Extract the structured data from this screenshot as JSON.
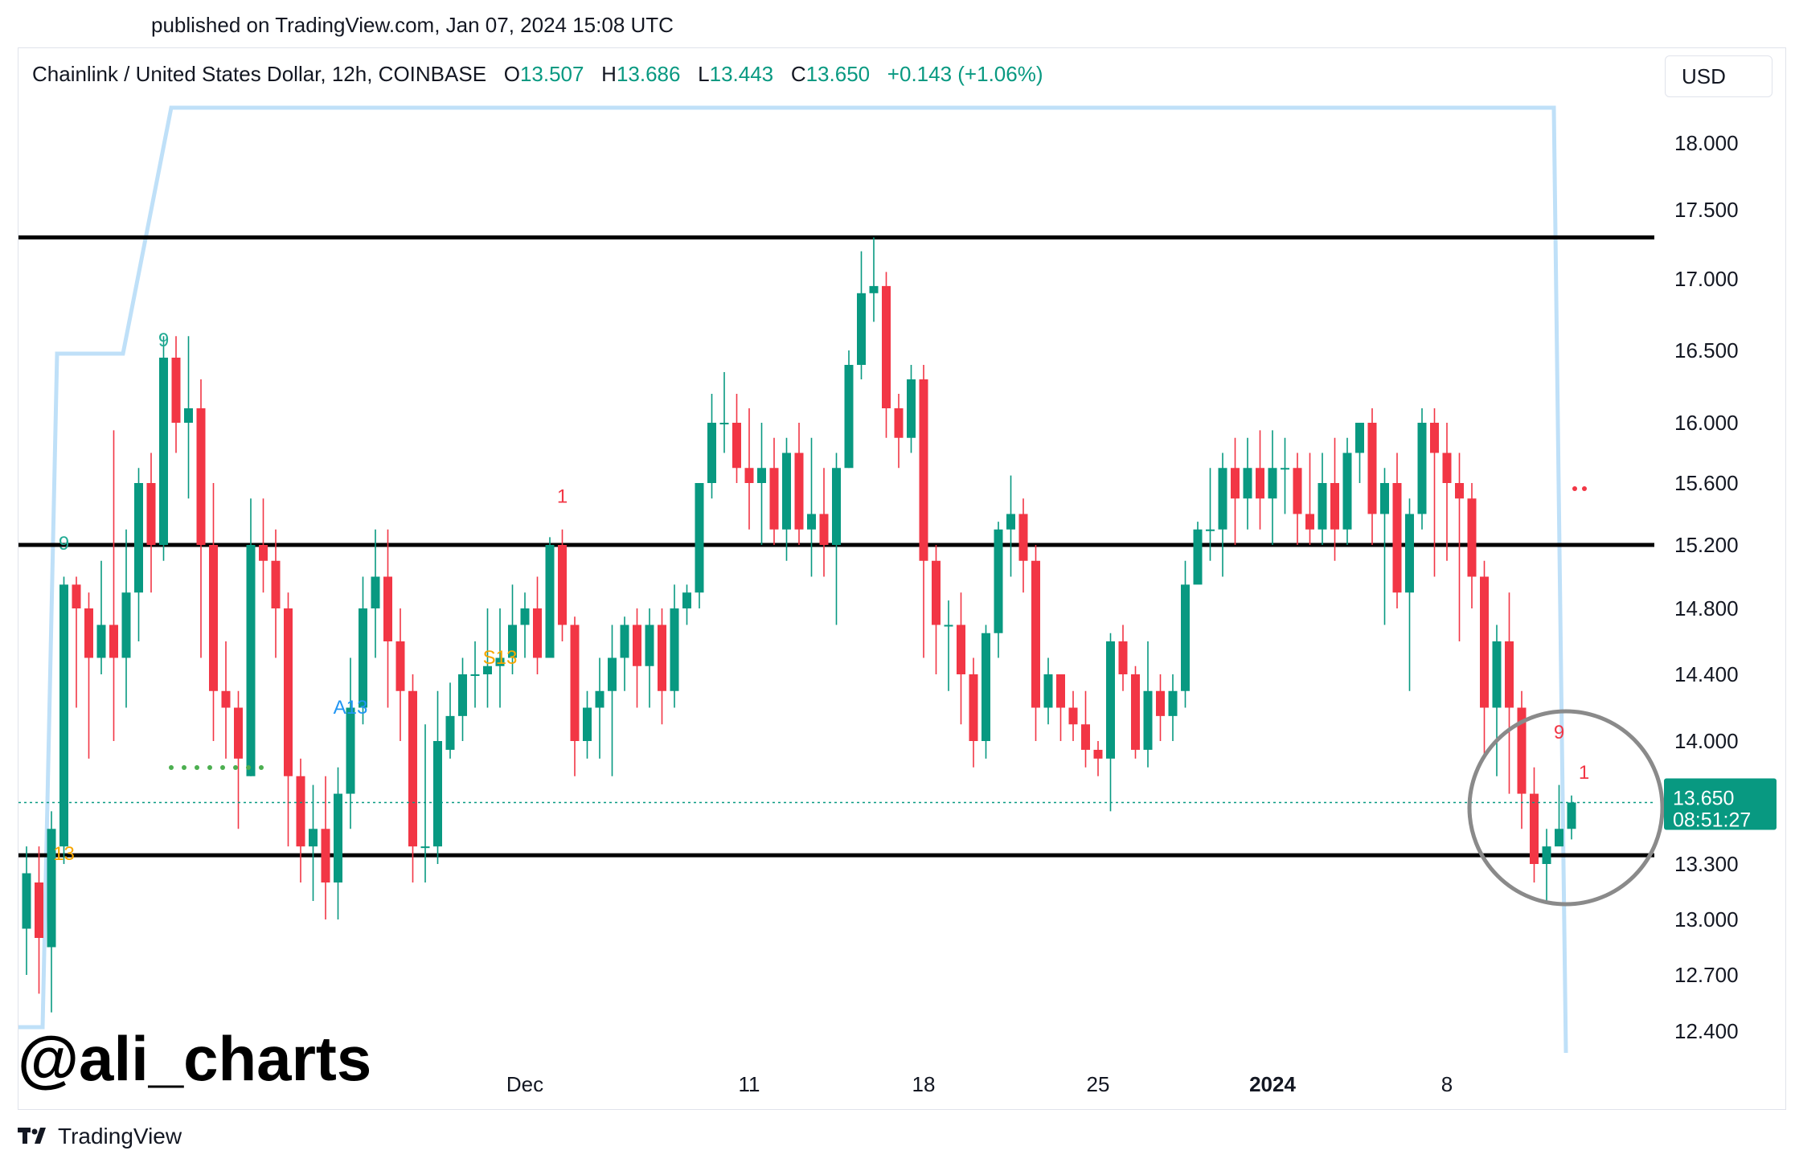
{
  "published_text": "published on TradingView.com, Jan 07, 2024 15:08 UTC",
  "header": {
    "symbol": "Chainlink / United States Dollar, 12h, COINBASE",
    "o_label": "O",
    "o_value": "13.507",
    "h_label": "H",
    "h_value": "13.686",
    "l_label": "L",
    "l_value": "13.443",
    "c_label": "C",
    "c_value": "13.650",
    "change": "+0.143 (+1.06%)",
    "currency": "USD"
  },
  "watermark": "@ali_charts",
  "brand": "TradingView",
  "colors": {
    "up": "#089981",
    "down": "#f23645",
    "band": "#f6f7f9",
    "trail": "#bfe0f8",
    "hline": "#000000"
  },
  "chart_data": {
    "type": "candlestick",
    "timeframe": "12h",
    "y_axis": {
      "ticks": [
        "18.000",
        "17.500",
        "17.000",
        "16.500",
        "16.000",
        "15.600",
        "15.200",
        "14.800",
        "14.400",
        "14.000",
        "13.300",
        "13.000",
        "12.700",
        "12.400"
      ]
    },
    "x_axis": {
      "ticks": [
        {
          "label": "Dec",
          "bar": 40,
          "bold": false
        },
        {
          "label": "11",
          "bar": 58,
          "bold": false
        },
        {
          "label": "18",
          "bar": 72,
          "bold": false
        },
        {
          "label": "25",
          "bar": 86,
          "bold": false
        },
        {
          "label": "2024",
          "bar": 100,
          "bold": true
        },
        {
          "label": "8",
          "bar": 114,
          "bold": false
        }
      ]
    },
    "current_price": {
      "value": 13.65,
      "label": "13.650",
      "countdown": "08:51:27"
    },
    "horizontal_lines": [
      17.3,
      15.2,
      13.35
    ],
    "range_band": [
      13.35,
      17.3
    ],
    "candles": [
      [
        12.95,
        13.25,
        13.4,
        12.7
      ],
      [
        13.2,
        12.9,
        13.4,
        12.6
      ],
      [
        12.85,
        13.5,
        13.6,
        12.5
      ],
      [
        13.4,
        14.95,
        15.0,
        13.3
      ],
      [
        14.95,
        14.8,
        15.0,
        14.2
      ],
      [
        14.8,
        14.5,
        14.9,
        13.9
      ],
      [
        14.5,
        14.7,
        15.1,
        14.4
      ],
      [
        14.7,
        14.5,
        15.95,
        14.0
      ],
      [
        14.5,
        14.9,
        15.3,
        14.2
      ],
      [
        14.9,
        15.6,
        15.7,
        14.6
      ],
      [
        15.6,
        15.2,
        15.8,
        14.9
      ],
      [
        15.2,
        16.45,
        16.6,
        15.1
      ],
      [
        16.45,
        16.0,
        16.6,
        15.8
      ],
      [
        16.0,
        16.1,
        16.6,
        15.5
      ],
      [
        16.1,
        15.2,
        16.3,
        14.5
      ],
      [
        15.2,
        14.3,
        15.6,
        14.0
      ],
      [
        14.3,
        14.2,
        14.6,
        13.9
      ],
      [
        14.2,
        13.9,
        14.3,
        13.5
      ],
      [
        13.8,
        15.2,
        15.5,
        13.8
      ],
      [
        15.2,
        15.1,
        15.5,
        14.9
      ],
      [
        15.1,
        14.8,
        15.3,
        14.5
      ],
      [
        14.8,
        13.8,
        14.9,
        13.4
      ],
      [
        13.8,
        13.4,
        13.9,
        13.2
      ],
      [
        13.4,
        13.5,
        13.75,
        13.1
      ],
      [
        13.5,
        13.2,
        13.8,
        13.0
      ],
      [
        13.2,
        13.7,
        13.85,
        13.0
      ],
      [
        13.7,
        14.2,
        14.5,
        13.5
      ],
      [
        14.2,
        14.8,
        15.0,
        14.1
      ],
      [
        14.8,
        15.0,
        15.3,
        14.5
      ],
      [
        15.0,
        14.6,
        15.3,
        14.2
      ],
      [
        14.6,
        14.3,
        14.8,
        14.0
      ],
      [
        14.3,
        13.4,
        14.4,
        13.2
      ],
      [
        13.4,
        13.4,
        14.1,
        13.2
      ],
      [
        13.4,
        14.0,
        14.3,
        13.3
      ],
      [
        13.95,
        14.15,
        14.35,
        13.9
      ],
      [
        14.15,
        14.4,
        14.5,
        14.0
      ],
      [
        14.4,
        14.4,
        14.6,
        14.2
      ],
      [
        14.4,
        14.45,
        14.8,
        14.2
      ],
      [
        14.45,
        14.5,
        14.8,
        14.2
      ],
      [
        14.5,
        14.7,
        14.95,
        14.4
      ],
      [
        14.7,
        14.8,
        14.9,
        14.5
      ],
      [
        14.8,
        14.5,
        15.0,
        14.4
      ],
      [
        14.5,
        15.2,
        15.25,
        14.5
      ],
      [
        15.2,
        14.7,
        15.3,
        14.6
      ],
      [
        14.7,
        14.0,
        14.75,
        13.8
      ],
      [
        14.0,
        14.2,
        14.3,
        13.9
      ],
      [
        14.2,
        14.3,
        14.5,
        13.9
      ],
      [
        14.3,
        14.5,
        14.7,
        13.8
      ],
      [
        14.5,
        14.7,
        14.75,
        14.3
      ],
      [
        14.7,
        14.45,
        14.8,
        14.2
      ],
      [
        14.45,
        14.7,
        14.8,
        14.2
      ],
      [
        14.7,
        14.3,
        14.8,
        14.1
      ],
      [
        14.3,
        14.8,
        14.95,
        14.2
      ],
      [
        14.8,
        14.9,
        14.95,
        14.7
      ],
      [
        14.9,
        15.6,
        15.6,
        14.8
      ],
      [
        15.6,
        16.0,
        16.2,
        15.5
      ],
      [
        16.0,
        16.0,
        16.35,
        15.8
      ],
      [
        16.0,
        15.7,
        16.2,
        15.6
      ],
      [
        15.7,
        15.6,
        16.1,
        15.3
      ],
      [
        15.6,
        15.7,
        16.0,
        15.2
      ],
      [
        15.7,
        15.3,
        15.9,
        15.2
      ],
      [
        15.3,
        15.8,
        15.9,
        15.1
      ],
      [
        15.8,
        15.3,
        16.0,
        15.2
      ],
      [
        15.3,
        15.4,
        15.9,
        15.0
      ],
      [
        15.4,
        15.2,
        15.7,
        15.0
      ],
      [
        15.2,
        15.7,
        15.8,
        14.7
      ],
      [
        15.7,
        16.4,
        16.5,
        15.7
      ],
      [
        16.4,
        16.9,
        17.2,
        16.3
      ],
      [
        16.9,
        16.95,
        17.3,
        16.7
      ],
      [
        16.95,
        16.1,
        17.05,
        15.9
      ],
      [
        16.1,
        15.9,
        16.2,
        15.7
      ],
      [
        15.9,
        16.3,
        16.4,
        15.8
      ],
      [
        16.3,
        15.1,
        16.4,
        14.5
      ],
      [
        15.1,
        14.7,
        15.2,
        14.4
      ],
      [
        14.7,
        14.7,
        14.85,
        14.3
      ],
      [
        14.7,
        14.4,
        14.9,
        14.1
      ],
      [
        14.4,
        14.0,
        14.5,
        13.85
      ],
      [
        14.0,
        14.65,
        14.7,
        13.9
      ],
      [
        14.65,
        15.3,
        15.35,
        14.5
      ],
      [
        15.3,
        15.4,
        15.65,
        15.0
      ],
      [
        15.4,
        15.1,
        15.5,
        14.9
      ],
      [
        15.1,
        14.2,
        15.2,
        14.0
      ],
      [
        14.2,
        14.4,
        14.5,
        14.1
      ],
      [
        14.4,
        14.2,
        14.4,
        14.0
      ],
      [
        14.2,
        14.1,
        14.3,
        14.0
      ],
      [
        14.1,
        13.95,
        14.3,
        13.85
      ],
      [
        13.95,
        13.9,
        14.0,
        13.8
      ],
      [
        13.9,
        14.6,
        14.65,
        13.6
      ],
      [
        14.6,
        14.4,
        14.7,
        14.3
      ],
      [
        14.4,
        13.95,
        14.45,
        13.9
      ],
      [
        13.95,
        14.3,
        14.6,
        13.85
      ],
      [
        14.3,
        14.15,
        14.4,
        14.0
      ],
      [
        14.15,
        14.3,
        14.4,
        14.0
      ],
      [
        14.3,
        14.95,
        15.1,
        14.2
      ],
      [
        14.95,
        15.3,
        15.35,
        15.0
      ],
      [
        15.3,
        15.3,
        15.7,
        15.1
      ],
      [
        15.3,
        15.7,
        15.8,
        15.0
      ],
      [
        15.7,
        15.5,
        15.9,
        15.2
      ],
      [
        15.5,
        15.7,
        15.9,
        15.3
      ],
      [
        15.7,
        15.5,
        15.95,
        15.3
      ],
      [
        15.5,
        15.7,
        15.95,
        15.2
      ],
      [
        15.7,
        15.7,
        15.9,
        15.4
      ],
      [
        15.7,
        15.4,
        15.8,
        15.2
      ],
      [
        15.4,
        15.3,
        15.8,
        15.2
      ],
      [
        15.3,
        15.6,
        15.8,
        15.2
      ],
      [
        15.6,
        15.3,
        15.9,
        15.1
      ],
      [
        15.3,
        15.8,
        15.9,
        15.2
      ],
      [
        15.8,
        16.0,
        16.0,
        15.6
      ],
      [
        16.0,
        15.4,
        16.1,
        15.2
      ],
      [
        15.4,
        15.6,
        15.7,
        14.7
      ],
      [
        15.6,
        14.9,
        15.8,
        14.8
      ],
      [
        14.9,
        15.4,
        15.5,
        14.3
      ],
      [
        15.4,
        16.0,
        16.1,
        15.3
      ],
      [
        16.0,
        15.8,
        16.1,
        15.0
      ],
      [
        15.8,
        15.6,
        16.0,
        15.1
      ],
      [
        15.6,
        15.5,
        15.8,
        14.6
      ],
      [
        15.5,
        15.0,
        15.6,
        14.8
      ],
      [
        15.0,
        14.2,
        15.1,
        13.9
      ],
      [
        14.2,
        14.6,
        14.7,
        13.8
      ],
      [
        14.6,
        14.2,
        14.9,
        13.7
      ],
      [
        14.2,
        13.7,
        14.3,
        13.5
      ],
      [
        13.7,
        13.3,
        13.85,
        13.2
      ],
      [
        13.3,
        13.4,
        13.5,
        13.1
      ],
      [
        13.4,
        13.5,
        13.75,
        13.45
      ],
      [
        13.5,
        13.65,
        13.69,
        13.44
      ]
    ],
    "indicator_labels": [
      {
        "text": "9",
        "color": "#22ab94",
        "bar": 11,
        "price": 16.45,
        "above": true
      },
      {
        "text": "9",
        "color": "#22ab94",
        "bar": 3,
        "price": 15.1,
        "above": true
      },
      {
        "text": "13",
        "color": "#f7a600",
        "bar": 3,
        "price": 13.45,
        "above": false
      },
      {
        "text": "A13",
        "color": "#2196f3",
        "bar": 26,
        "price": 14.3,
        "above": false
      },
      {
        "text": "S13",
        "color": "#f7a600",
        "bar": 38,
        "price": 14.6,
        "above": false
      },
      {
        "text": "1",
        "color": "#f23645",
        "bar": 43,
        "price": 15.4,
        "above": true
      },
      {
        "text": "9",
        "color": "#f23645",
        "bar": 123,
        "price": 13.95,
        "above": true
      },
      {
        "text": "1",
        "color": "#f23645",
        "bar": 125,
        "price": 13.72,
        "above": true
      }
    ]
  }
}
